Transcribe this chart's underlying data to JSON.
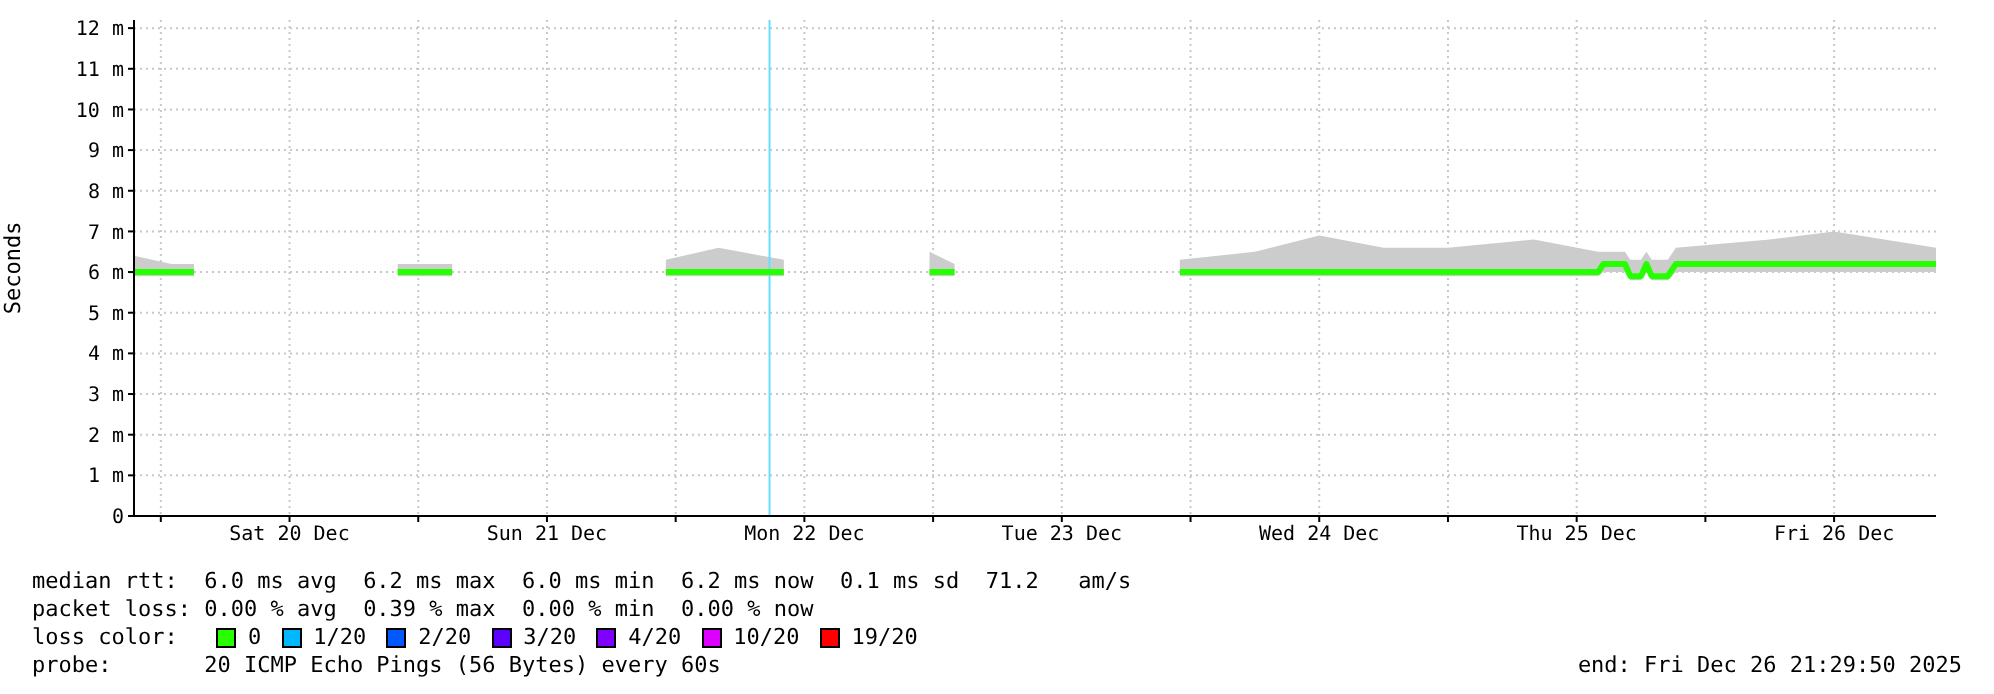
{
  "chart_data": {
    "type": "line",
    "ylabel": "Seconds",
    "x": [
      "2025-12-19T21:30",
      "2025-12-20T01:00",
      "2025-12-20T03:05",
      "2025-12-20T03:30",
      "2025-12-20T22:05",
      "2025-12-21T01:00",
      "2025-12-21T03:10",
      "2025-12-21T04:00",
      "2025-12-21T23:05",
      "2025-12-22T04:00",
      "2025-12-22T10:05",
      "2025-12-22T11:00",
      "2025-12-22T23:40",
      "2025-12-23T02:00",
      "2025-12-23T03:00",
      "2025-12-23T23:00",
      "2025-12-24T06:00",
      "2025-12-24T12:00",
      "2025-12-24T18:00",
      "2025-12-25T00:00",
      "2025-12-25T08:00",
      "2025-12-25T14:00",
      "2025-12-25T14:30",
      "2025-12-25T16:30",
      "2025-12-25T17:00",
      "2025-12-25T18:00",
      "2025-12-25T18:30",
      "2025-12-25T19:00",
      "2025-12-25T20:30",
      "2025-12-25T21:15",
      "2025-12-26T06:00",
      "2025-12-26T12:00",
      "2025-12-26T21:30"
    ],
    "series": [
      {
        "name": "0",
        "color": "#26ff00",
        "values": [
          6.0,
          6.0,
          6.0,
          null,
          6.0,
          6.0,
          6.0,
          null,
          6.0,
          6.0,
          6.0,
          null,
          6.0,
          6.0,
          null,
          6.0,
          6.0,
          6.0,
          6.0,
          6.0,
          6.0,
          6.0,
          6.2,
          6.2,
          5.9,
          5.9,
          6.2,
          5.9,
          5.9,
          6.2,
          6.2,
          6.2,
          6.2
        ],
        "lower": [
          5.9,
          5.9,
          5.9,
          null,
          5.9,
          5.9,
          5.9,
          null,
          5.9,
          5.9,
          5.9,
          null,
          5.9,
          5.9,
          null,
          5.9,
          5.9,
          5.9,
          5.9,
          5.9,
          5.9,
          5.9,
          6.0,
          6.0,
          5.8,
          5.8,
          6.0,
          5.8,
          5.8,
          6.0,
          6.0,
          6.0,
          6.0
        ],
        "upper": [
          6.4,
          6.2,
          6.2,
          null,
          6.2,
          6.2,
          6.2,
          null,
          6.3,
          6.6,
          6.3,
          null,
          6.5,
          6.2,
          null,
          6.3,
          6.5,
          6.9,
          6.6,
          6.6,
          6.8,
          6.5,
          6.5,
          6.5,
          6.3,
          6.3,
          6.5,
          6.3,
          6.3,
          6.6,
          6.8,
          7.0,
          6.6
        ]
      },
      {
        "name": "1/20",
        "color": "#00b8ff",
        "values": [
          null,
          null,
          null,
          null,
          null,
          null,
          null,
          null,
          null,
          null,
          null,
          null,
          null,
          null,
          null,
          null,
          null,
          null,
          null,
          null,
          null,
          null,
          null,
          null,
          null,
          null,
          null,
          null,
          null,
          null,
          null,
          null,
          null
        ]
      },
      {
        "name": "2/20",
        "color": "#0059ff",
        "values": [
          null,
          null,
          null,
          null,
          null,
          null,
          null,
          null,
          null,
          null,
          null,
          null,
          null,
          null,
          null,
          null,
          null,
          null,
          null,
          null,
          null,
          null,
          null,
          null,
          null,
          null,
          null,
          null,
          null,
          null,
          null,
          null,
          null
        ]
      },
      {
        "name": "3/20",
        "color": "#5e00ff",
        "values": [
          null,
          null,
          null,
          null,
          null,
          null,
          null,
          null,
          null,
          null,
          null,
          null,
          null,
          null,
          null,
          null,
          null,
          null,
          null,
          null,
          null,
          null,
          null,
          null,
          null,
          null,
          null,
          null,
          null,
          null,
          null,
          null,
          null
        ]
      },
      {
        "name": "4/20",
        "color": "#7e00ff",
        "values": [
          null,
          null,
          null,
          null,
          null,
          null,
          null,
          null,
          null,
          null,
          null,
          null,
          null,
          null,
          null,
          null,
          null,
          null,
          null,
          null,
          null,
          null,
          null,
          null,
          null,
          null,
          null,
          null,
          null,
          null,
          null,
          null,
          null
        ]
      },
      {
        "name": "10/20",
        "color": "#dd00ff",
        "values": [
          null,
          null,
          null,
          null,
          null,
          null,
          null,
          null,
          null,
          null,
          null,
          null,
          null,
          null,
          null,
          null,
          null,
          null,
          null,
          null,
          null,
          null,
          null,
          null,
          null,
          null,
          null,
          null,
          null,
          null,
          null,
          null,
          null
        ]
      },
      {
        "name": "19/20",
        "color": "#ff0000",
        "values": [
          null,
          null,
          null,
          null,
          null,
          null,
          null,
          null,
          null,
          null,
          null,
          null,
          null,
          null,
          null,
          null,
          null,
          null,
          null,
          null,
          null,
          null,
          null,
          null,
          null,
          null,
          null,
          null,
          null,
          null,
          null,
          null,
          null
        ]
      }
    ],
    "legend": "bottom",
    "legend_title": "loss color:",
    "xlim": [
      "2025-12-19T21:30",
      "2025-12-26T21:30"
    ],
    "xticks": [
      {
        "value": "2025-12-20T00:00",
        "label": null
      },
      {
        "value": "2025-12-20T12:00",
        "label": "Sat 20 Dec"
      },
      {
        "value": "2025-12-21T00:00",
        "label": null
      },
      {
        "value": "2025-12-21T12:00",
        "label": "Sun 21 Dec"
      },
      {
        "value": "2025-12-22T00:00",
        "label": null
      },
      {
        "value": "2025-12-22T12:00",
        "label": "Mon 22 Dec"
      },
      {
        "value": "2025-12-23T00:00",
        "label": null
      },
      {
        "value": "2025-12-23T12:00",
        "label": "Tue 23 Dec"
      },
      {
        "value": "2025-12-24T00:00",
        "label": null
      },
      {
        "value": "2025-12-24T12:00",
        "label": "Wed 24 Dec"
      },
      {
        "value": "2025-12-25T00:00",
        "label": null
      },
      {
        "value": "2025-12-25T12:00",
        "label": "Thu 25 Dec"
      },
      {
        "value": "2025-12-26T00:00",
        "label": null
      },
      {
        "value": "2025-12-26T12:00",
        "label": "Fri 26 Dec"
      }
    ],
    "ylim": [
      0,
      12.2
    ],
    "yticks": [
      0,
      {
        "value": 1,
        "label": "1 m"
      },
      {
        "value": 2,
        "label": "2 m"
      },
      {
        "value": 3,
        "label": "3 m"
      },
      {
        "value": 4,
        "label": "4 m"
      },
      {
        "value": 5,
        "label": "5 m"
      },
      {
        "value": 6,
        "label": "6 m"
      },
      {
        "value": 7,
        "label": "7 m"
      },
      {
        "value": 8,
        "label": "8 m"
      },
      {
        "value": 9,
        "label": "9 m"
      },
      {
        "value": 10,
        "label": "10 m"
      },
      {
        "value": 11,
        "label": "11 m"
      },
      {
        "value": 12,
        "label": "12 m"
      }
    ],
    "grid": true,
    "marker": "none",
    "line_style": "solid",
    "ref_lines": [
      {
        "axis": "x",
        "value": "2025-12-22T08:45",
        "color": "#66ddff"
      }
    ],
    "annotations": [
      "median rtt:  6.0 ms avg  6.2 ms max  6.0 ms min  6.2 ms now  0.1 ms sd  71.2   am/s",
      "packet loss: 0.00 % avg  0.39 % max  0.00 % min  0.00 % now",
      "probe:       20 ICMP Echo Pings (56 Bytes) every 60s",
      "end: Fri Dec 26 21:29:50 2025"
    ]
  }
}
